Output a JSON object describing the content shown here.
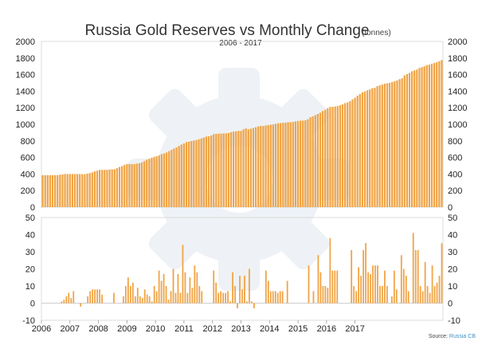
{
  "chart_data": {
    "title": "Russia Gold Reserves vs Monthly Change",
    "title_unit": "(tonnes)",
    "subtitle": "2006 - 2017",
    "source_prefix": "Source:",
    "source_name": "Russia CB",
    "bar_color": "#f0a446",
    "watermark_color": "#eef2f6",
    "x_tick_labels": [
      "2006",
      "2007",
      "2008",
      "2009",
      "2010",
      "2011",
      "2012",
      "2013",
      "2014",
      "2015",
      "2016",
      "2017"
    ],
    "panels": [
      {
        "type": "bar",
        "name": "reserves",
        "ylim": [
          0,
          2000
        ],
        "yticks": [
          0,
          200,
          400,
          600,
          800,
          1000,
          1200,
          1400,
          1600,
          1800,
          2000
        ],
        "values": [
          386,
          386,
          386,
          386,
          386,
          386,
          387,
          392,
          396,
          400,
          400,
          400,
          400,
          400,
          400,
          400,
          398,
          398,
          405,
          411,
          420,
          432,
          440,
          450,
          450,
          450,
          450,
          455,
          456,
          458,
          470,
          485,
          495,
          510,
          520,
          520,
          520,
          520,
          526,
          530,
          540,
          555,
          572,
          583,
          597,
          607,
          615,
          625,
          640,
          648,
          660,
          676,
          692,
          707,
          721,
          740,
          756,
          768,
          785,
          790,
          798,
          805,
          810,
          820,
          830,
          840,
          852,
          855,
          865,
          880,
          885,
          888,
          888,
          890,
          890,
          895,
          905,
          912,
          915,
          920,
          920,
          940,
          950,
          940,
          947,
          955,
          965,
          975,
          980,
          980,
          985,
          990,
          995,
          998,
          1005,
          1012,
          1015,
          1018,
          1020,
          1025,
          1025,
          1028,
          1035,
          1040,
          1043,
          1045,
          1049,
          1060,
          1085,
          1095,
          1110,
          1125,
          1140,
          1160,
          1175,
          1195,
          1210,
          1210,
          1215,
          1220,
          1230,
          1240,
          1255,
          1265,
          1280,
          1300,
          1320,
          1345,
          1365,
          1385,
          1395,
          1410,
          1420,
          1435,
          1440,
          1460,
          1470,
          1480,
          1490,
          1495,
          1500,
          1510,
          1520,
          1530,
          1545,
          1556,
          1590,
          1605,
          1620,
          1640,
          1650,
          1660,
          1680,
          1690,
          1700,
          1715,
          1720,
          1730,
          1740,
          1750,
          1760,
          1775
        ]
      },
      {
        "type": "bar",
        "name": "monthly_change",
        "ylim": [
          -10,
          50
        ],
        "yticks": [
          -10,
          0,
          10,
          20,
          30,
          40,
          50
        ],
        "values": [
          0,
          0,
          0,
          0,
          0,
          0,
          0,
          0,
          1,
          2,
          4,
          6,
          3,
          7,
          0,
          0,
          -2,
          0,
          0,
          4,
          7,
          8,
          8,
          8,
          8,
          5,
          0,
          0,
          0,
          0,
          6,
          0,
          0,
          0,
          4,
          10,
          15,
          10,
          12,
          4,
          9,
          4,
          3,
          8,
          5,
          4,
          1,
          10,
          7,
          19,
          13,
          17,
          10,
          2,
          7,
          20,
          6,
          17,
          6,
          34,
          18,
          6,
          15,
          9,
          22,
          18,
          10,
          7,
          0,
          0,
          0,
          0,
          19,
          12,
          6,
          7,
          6,
          6,
          7,
          1,
          18,
          10,
          -3,
          16,
          8,
          16,
          1,
          20,
          1,
          -3,
          0,
          0,
          0,
          0,
          19,
          13,
          7,
          7,
          7,
          6,
          7,
          7,
          0,
          13,
          0,
          0,
          0,
          0,
          0,
          0,
          0,
          0,
          22,
          0,
          7,
          0,
          28,
          18,
          10,
          10,
          9,
          38,
          19,
          19,
          19,
          0,
          0,
          0,
          0,
          0,
          31,
          10,
          7,
          21,
          16,
          31,
          35,
          18,
          17,
          22,
          22,
          22,
          10,
          10,
          19,
          10,
          0,
          4,
          19,
          8,
          0,
          28,
          20,
          16,
          7,
          0,
          41,
          31,
          31,
          10,
          7,
          24,
          10,
          6,
          22,
          10,
          12,
          16,
          35
        ]
      }
    ]
  }
}
